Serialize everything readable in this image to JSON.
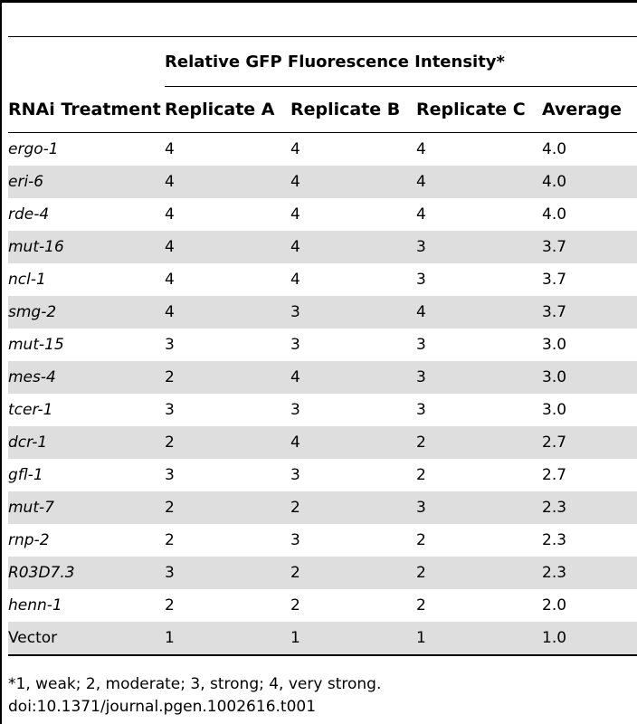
{
  "table": {
    "group_header": "Relative GFP Fluorescence Intensity*",
    "columns": [
      "RNAi Treatment",
      "Replicate A",
      "Replicate B",
      "Replicate C",
      "Average"
    ],
    "rows": [
      {
        "treatment": "ergo-1",
        "a": "4",
        "b": "4",
        "c": "4",
        "avg": "4.0"
      },
      {
        "treatment": "eri-6",
        "a": "4",
        "b": "4",
        "c": "4",
        "avg": "4.0"
      },
      {
        "treatment": "rde-4",
        "a": "4",
        "b": "4",
        "c": "4",
        "avg": "4.0"
      },
      {
        "treatment": "mut-16",
        "a": "4",
        "b": "4",
        "c": "3",
        "avg": "3.7"
      },
      {
        "treatment": "ncl-1",
        "a": "4",
        "b": "4",
        "c": "3",
        "avg": "3.7"
      },
      {
        "treatment": "smg-2",
        "a": "4",
        "b": "3",
        "c": "4",
        "avg": "3.7"
      },
      {
        "treatment": "mut-15",
        "a": "3",
        "b": "3",
        "c": "3",
        "avg": "3.0"
      },
      {
        "treatment": "mes-4",
        "a": "2",
        "b": "4",
        "c": "3",
        "avg": "3.0"
      },
      {
        "treatment": "tcer-1",
        "a": "3",
        "b": "3",
        "c": "3",
        "avg": "3.0"
      },
      {
        "treatment": "dcr-1",
        "a": "2",
        "b": "4",
        "c": "2",
        "avg": "2.7"
      },
      {
        "treatment": "gfl-1",
        "a": "3",
        "b": "3",
        "c": "2",
        "avg": "2.7"
      },
      {
        "treatment": "mut-7",
        "a": "2",
        "b": "2",
        "c": "3",
        "avg": "2.3"
      },
      {
        "treatment": "rnp-2",
        "a": "2",
        "b": "3",
        "c": "2",
        "avg": "2.3"
      },
      {
        "treatment": "R03D7.3",
        "a": "3",
        "b": "2",
        "c": "2",
        "avg": "2.3"
      },
      {
        "treatment": "henn-1",
        "a": "2",
        "b": "2",
        "c": "2",
        "avg": "2.0"
      },
      {
        "treatment": "Vector",
        "a": "1",
        "b": "1",
        "c": "1",
        "avg": "1.0",
        "italic": false
      }
    ],
    "stripe_color": "#dedede"
  },
  "footnote": "*1, weak; 2, moderate; 3, strong; 4, very strong.",
  "doi": "doi:10.1371/journal.pgen.1002616.t001"
}
